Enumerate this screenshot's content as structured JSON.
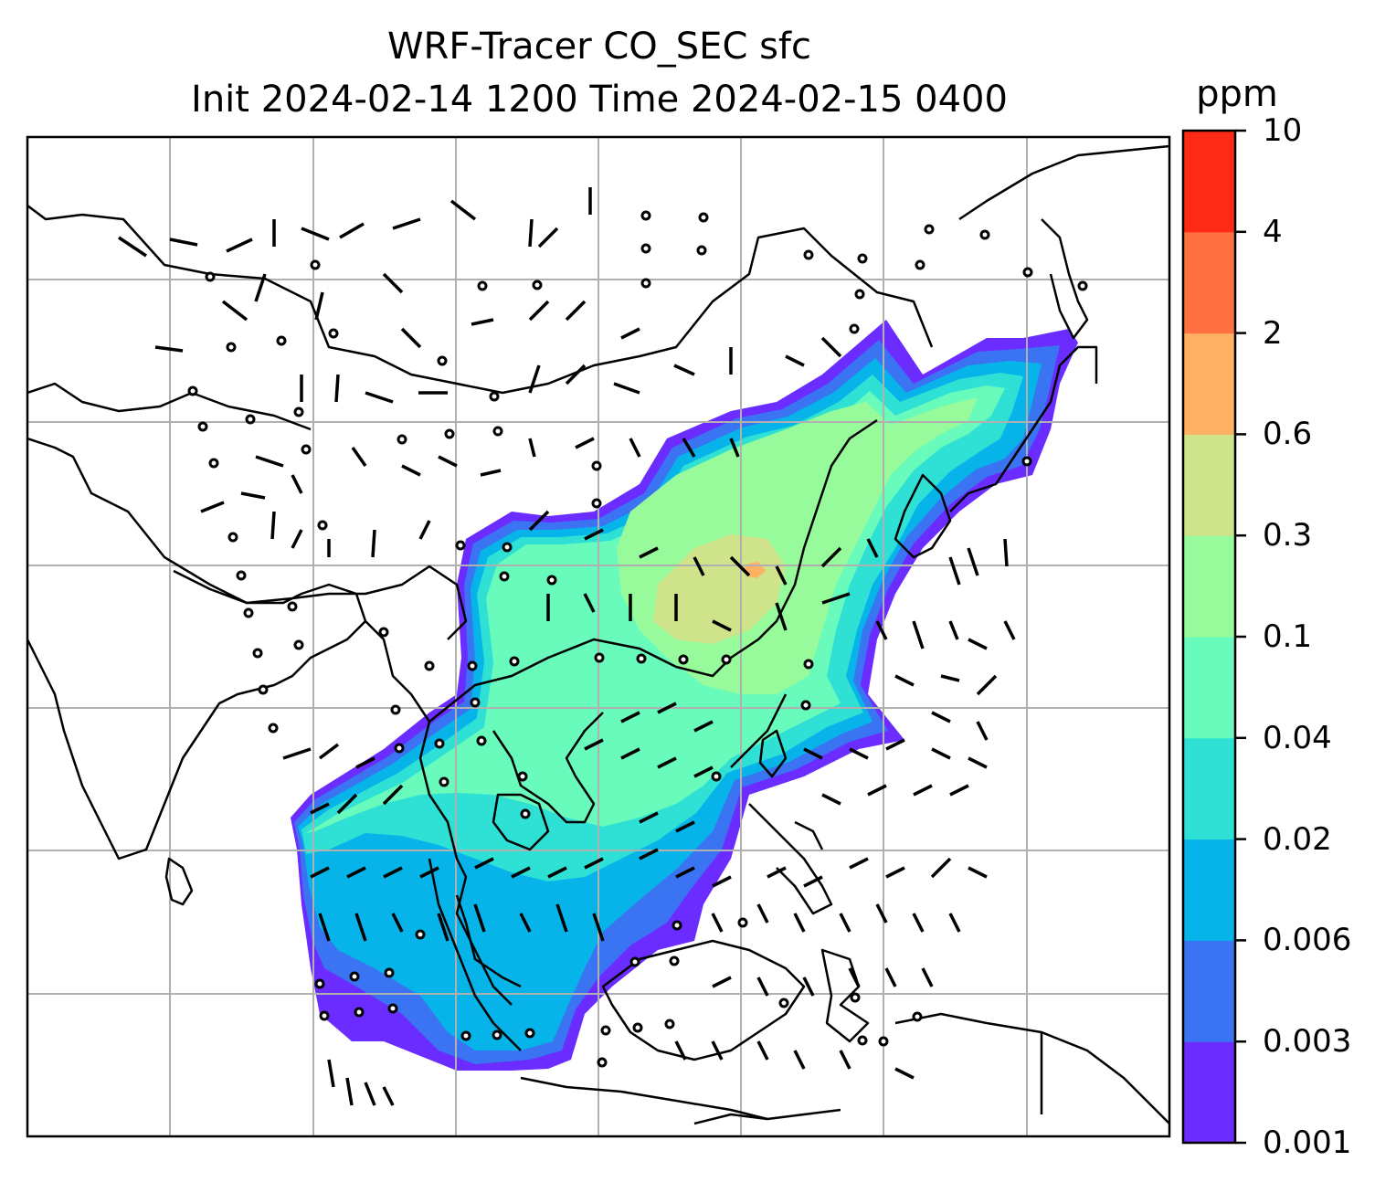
{
  "title": {
    "line1": "WRF-Tracer CO_SEC sfc",
    "line2": "Init 2024-02-14 1200 Time 2024-02-15 0400"
  },
  "colorbar": {
    "unit": "ppm",
    "levels": [
      "0.001",
      "0.003",
      "0.006",
      "0.02",
      "0.04",
      "0.1",
      "0.3",
      "0.6",
      "2",
      "4",
      "10"
    ],
    "colors": [
      "#6a2cff",
      "#3a74f2",
      "#06b4ea",
      "#2fe0d4",
      "#68fbbc",
      "#97fb9b",
      "#cfe38a",
      "#ffb063",
      "#ff7040",
      "#ff2a16"
    ]
  },
  "map": {
    "variable": "CO_SEC",
    "level": "sfc",
    "wind_barbs": true,
    "gridlines": true,
    "coastlines": true
  }
}
